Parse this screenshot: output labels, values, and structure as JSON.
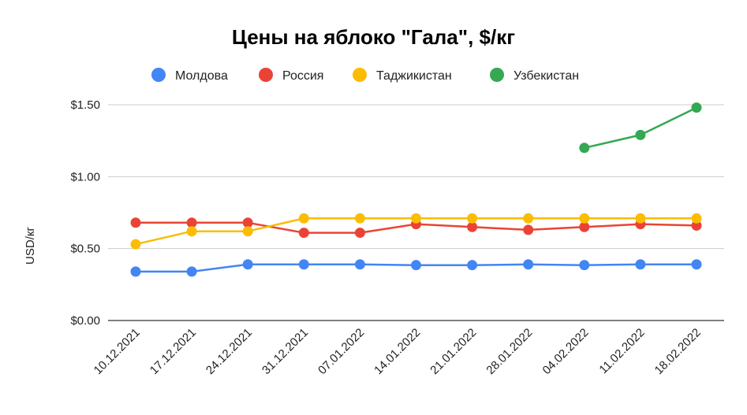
{
  "chart_data": {
    "type": "line",
    "title": "Цены на яблоко \"Гала\", $/кг",
    "xlabel": "",
    "ylabel": "USD/кг",
    "ylim": [
      0,
      1.5
    ],
    "yticks": [
      {
        "value": 0,
        "label": "$0.00"
      },
      {
        "value": 0.5,
        "label": "$0.50"
      },
      {
        "value": 1.0,
        "label": "$1.00"
      },
      {
        "value": 1.5,
        "label": "$1.50"
      }
    ],
    "grid": true,
    "legend_position": "top",
    "categories": [
      "10.12.2021",
      "17.12.2021",
      "24.12.2021",
      "31.12.2021",
      "07.01.2022",
      "14.01.2022",
      "21.01.2022",
      "28.01.2022",
      "04.02.2022",
      "11.02.2022",
      "18.02.2022"
    ],
    "series": [
      {
        "name": "Молдова",
        "color": "#4285f4",
        "values": [
          0.34,
          0.34,
          0.39,
          0.39,
          0.39,
          0.385,
          0.385,
          0.39,
          0.385,
          0.39,
          0.39
        ]
      },
      {
        "name": "Россия",
        "color": "#ea4335",
        "values": [
          0.68,
          0.68,
          0.68,
          0.61,
          0.61,
          0.67,
          0.65,
          0.63,
          0.65,
          0.67,
          0.66
        ]
      },
      {
        "name": "Таджикистан",
        "color": "#fbbc04",
        "values": [
          0.53,
          0.62,
          0.62,
          0.71,
          0.71,
          0.71,
          0.71,
          0.71,
          0.71,
          0.71,
          0.71
        ]
      },
      {
        "name": "Узбекистан",
        "color": "#34a853",
        "values": [
          null,
          null,
          null,
          null,
          null,
          null,
          null,
          null,
          1.2,
          1.29,
          1.48
        ]
      }
    ]
  }
}
